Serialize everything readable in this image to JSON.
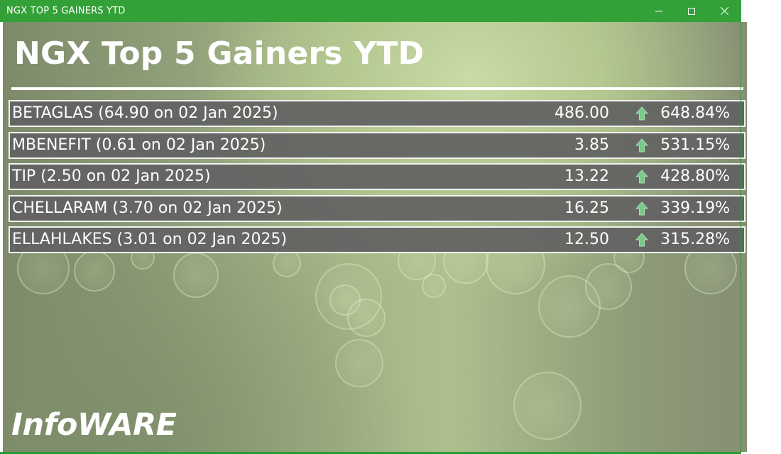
{
  "window": {
    "title": "NGX TOP 5 GAINERS YTD",
    "buttons": {
      "minimize": "minimize-icon",
      "maximize": "maximize-icon",
      "close": "close-icon"
    },
    "titlebar_color": "#33a138"
  },
  "main": {
    "title": "NGX Top 5 Gainers YTD",
    "brand": "InfoWARE"
  },
  "gainers": [
    {
      "label": "BETAGLAS (64.90 on 02 Jan 2025)",
      "price": "486.00",
      "change": "648.84%",
      "direction_icon": "up-arrow-icon"
    },
    {
      "label": "MBENEFIT (0.61 on 02 Jan 2025)",
      "price": "3.85",
      "change": "531.15%",
      "direction_icon": "up-arrow-icon"
    },
    {
      "label": "TIP (2.50 on 02 Jan 2025)",
      "price": "13.22",
      "change": "428.80%",
      "direction_icon": "up-arrow-icon"
    },
    {
      "label": "CHELLARAM (3.70 on 02 Jan 2025)",
      "price": "16.25",
      "change": "339.19%",
      "direction_icon": "up-arrow-icon"
    },
    {
      "label": "ELLAHLAKES (3.01 on 02 Jan 2025)",
      "price": "12.50",
      "change": "315.28%",
      "direction_icon": "up-arrow-icon"
    }
  ],
  "colors": {
    "row_background": "#626262",
    "up_arrow": "#7cc98a"
  }
}
